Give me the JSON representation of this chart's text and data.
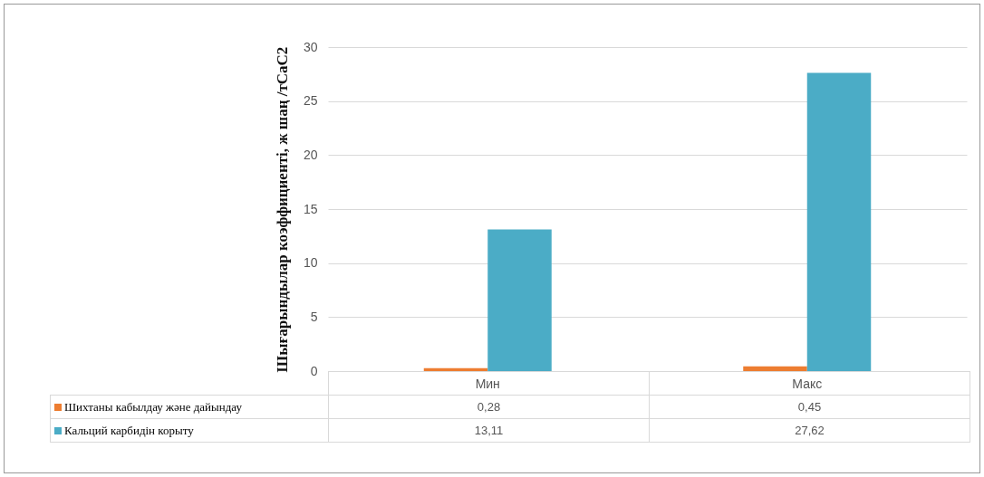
{
  "chart_data": {
    "type": "bar",
    "ylabel": "Шығарындылар коэффициенті, ж шаң /тCaC2",
    "categories": [
      "Мин",
      "Макс"
    ],
    "series": [
      {
        "name": "Шихтаны кабылдау және дайындау",
        "color": "#ed7d31",
        "values": [
          0.28,
          0.45
        ],
        "value_labels": [
          "0,28",
          "0,45"
        ]
      },
      {
        "name": "Кальций карбидін корыту",
        "color": "#4bacc6",
        "values": [
          13.11,
          27.62
        ],
        "value_labels": [
          "13,11",
          "27,62"
        ]
      }
    ],
    "ylim": [
      0,
      30
    ],
    "yticks": [
      0,
      5,
      10,
      15,
      20,
      25,
      30
    ],
    "grid": "y",
    "legend": "bottom"
  }
}
